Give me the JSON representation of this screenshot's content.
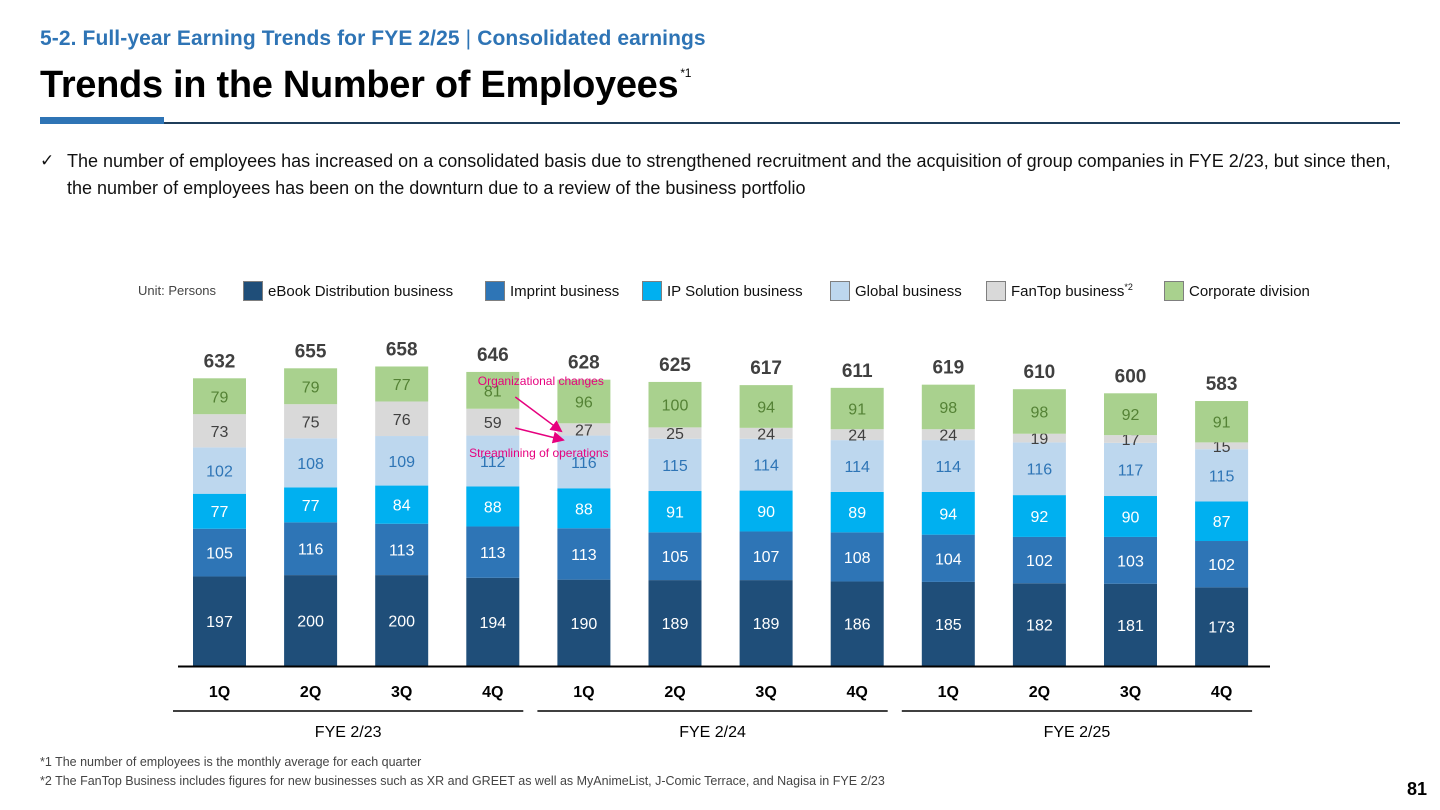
{
  "header": {
    "section_label": "5-2. Full-year Earning Trends for FYE 2/25",
    "section_separator": "|",
    "section_sub": "Consolidated earnings",
    "title": "Trends in the Number of Employees",
    "title_note": "*1"
  },
  "bullet": {
    "check_icon": "checkmark-icon",
    "text": "The number of employees has increased on a consolidated basis due to strengthened recruitment and the acquisition of group companies in FYE 2/23, but since then, the number of employees has been on the downturn due to a review of the business portfolio"
  },
  "unit_label": "Unit: Persons",
  "legend": [
    {
      "label": "eBook Distribution business",
      "note": "",
      "color": "#1f4e79"
    },
    {
      "label": "Imprint business",
      "note": "",
      "color": "#2e75b6"
    },
    {
      "label": "IP Solution business",
      "note": "",
      "color": "#00b0f0"
    },
    {
      "label": "Global business",
      "note": "",
      "color": "#bdd7ee"
    },
    {
      "label": "FanTop business",
      "note": "*2",
      "color": "#d9d9d9"
    },
    {
      "label": "Corporate division",
      "note": "",
      "color": "#a9d18e"
    }
  ],
  "chart_data": {
    "type": "bar",
    "stacked": true,
    "categories": [
      "1Q",
      "2Q",
      "3Q",
      "4Q",
      "1Q",
      "2Q",
      "3Q",
      "4Q",
      "1Q",
      "2Q",
      "3Q",
      "4Q"
    ],
    "groups": [
      {
        "label": "FYE 2/23",
        "from": 0,
        "to": 3
      },
      {
        "label": "FYE 2/24",
        "from": 4,
        "to": 7
      },
      {
        "label": "FYE 2/25",
        "from": 8,
        "to": 11
      }
    ],
    "series": [
      {
        "name": "eBook Distribution business",
        "color": "#1f4e79",
        "label_color": "#ffffff",
        "values": [
          197,
          200,
          200,
          194,
          190,
          189,
          189,
          186,
          185,
          182,
          181,
          173
        ]
      },
      {
        "name": "Imprint business",
        "color": "#2e75b6",
        "label_color": "#ffffff",
        "values": [
          105,
          116,
          113,
          113,
          113,
          105,
          107,
          108,
          104,
          102,
          103,
          102
        ]
      },
      {
        "name": "IP Solution business",
        "color": "#00b0f0",
        "label_color": "#ffffff",
        "values": [
          77,
          77,
          84,
          88,
          88,
          91,
          90,
          89,
          94,
          92,
          90,
          87
        ]
      },
      {
        "name": "Global business",
        "color": "#bdd7ee",
        "label_color": "#2e75b6",
        "values": [
          102,
          108,
          109,
          112,
          116,
          115,
          114,
          114,
          114,
          116,
          117,
          115
        ]
      },
      {
        "name": "FanTop business",
        "color": "#d9d9d9",
        "label_color": "#404040",
        "values": [
          73,
          75,
          76,
          59,
          27,
          25,
          24,
          24,
          24,
          19,
          17,
          15
        ]
      },
      {
        "name": "Corporate division",
        "color": "#a9d18e",
        "label_color": "#548235",
        "values": [
          79,
          79,
          77,
          81,
          96,
          100,
          94,
          91,
          98,
          98,
          92,
          91
        ]
      }
    ],
    "totals": [
      632,
      655,
      658,
      646,
      628,
      625,
      617,
      611,
      619,
      610,
      600,
      583
    ],
    "annotations": [
      {
        "text": "Organizational changes",
        "color": "#e6007e"
      },
      {
        "text": "Streamlining of operations",
        "color": "#e6007e"
      }
    ],
    "ylim": [
      0,
      700
    ]
  },
  "footnotes": [
    "*1 The number of employees is the monthly average for each quarter",
    "*2 The FanTop Business includes figures for new businesses such as XR and GREET as well as MyAnimeList, J-Comic Terrace, and Nagisa in FYE 2/23"
  ],
  "page_number": "81"
}
